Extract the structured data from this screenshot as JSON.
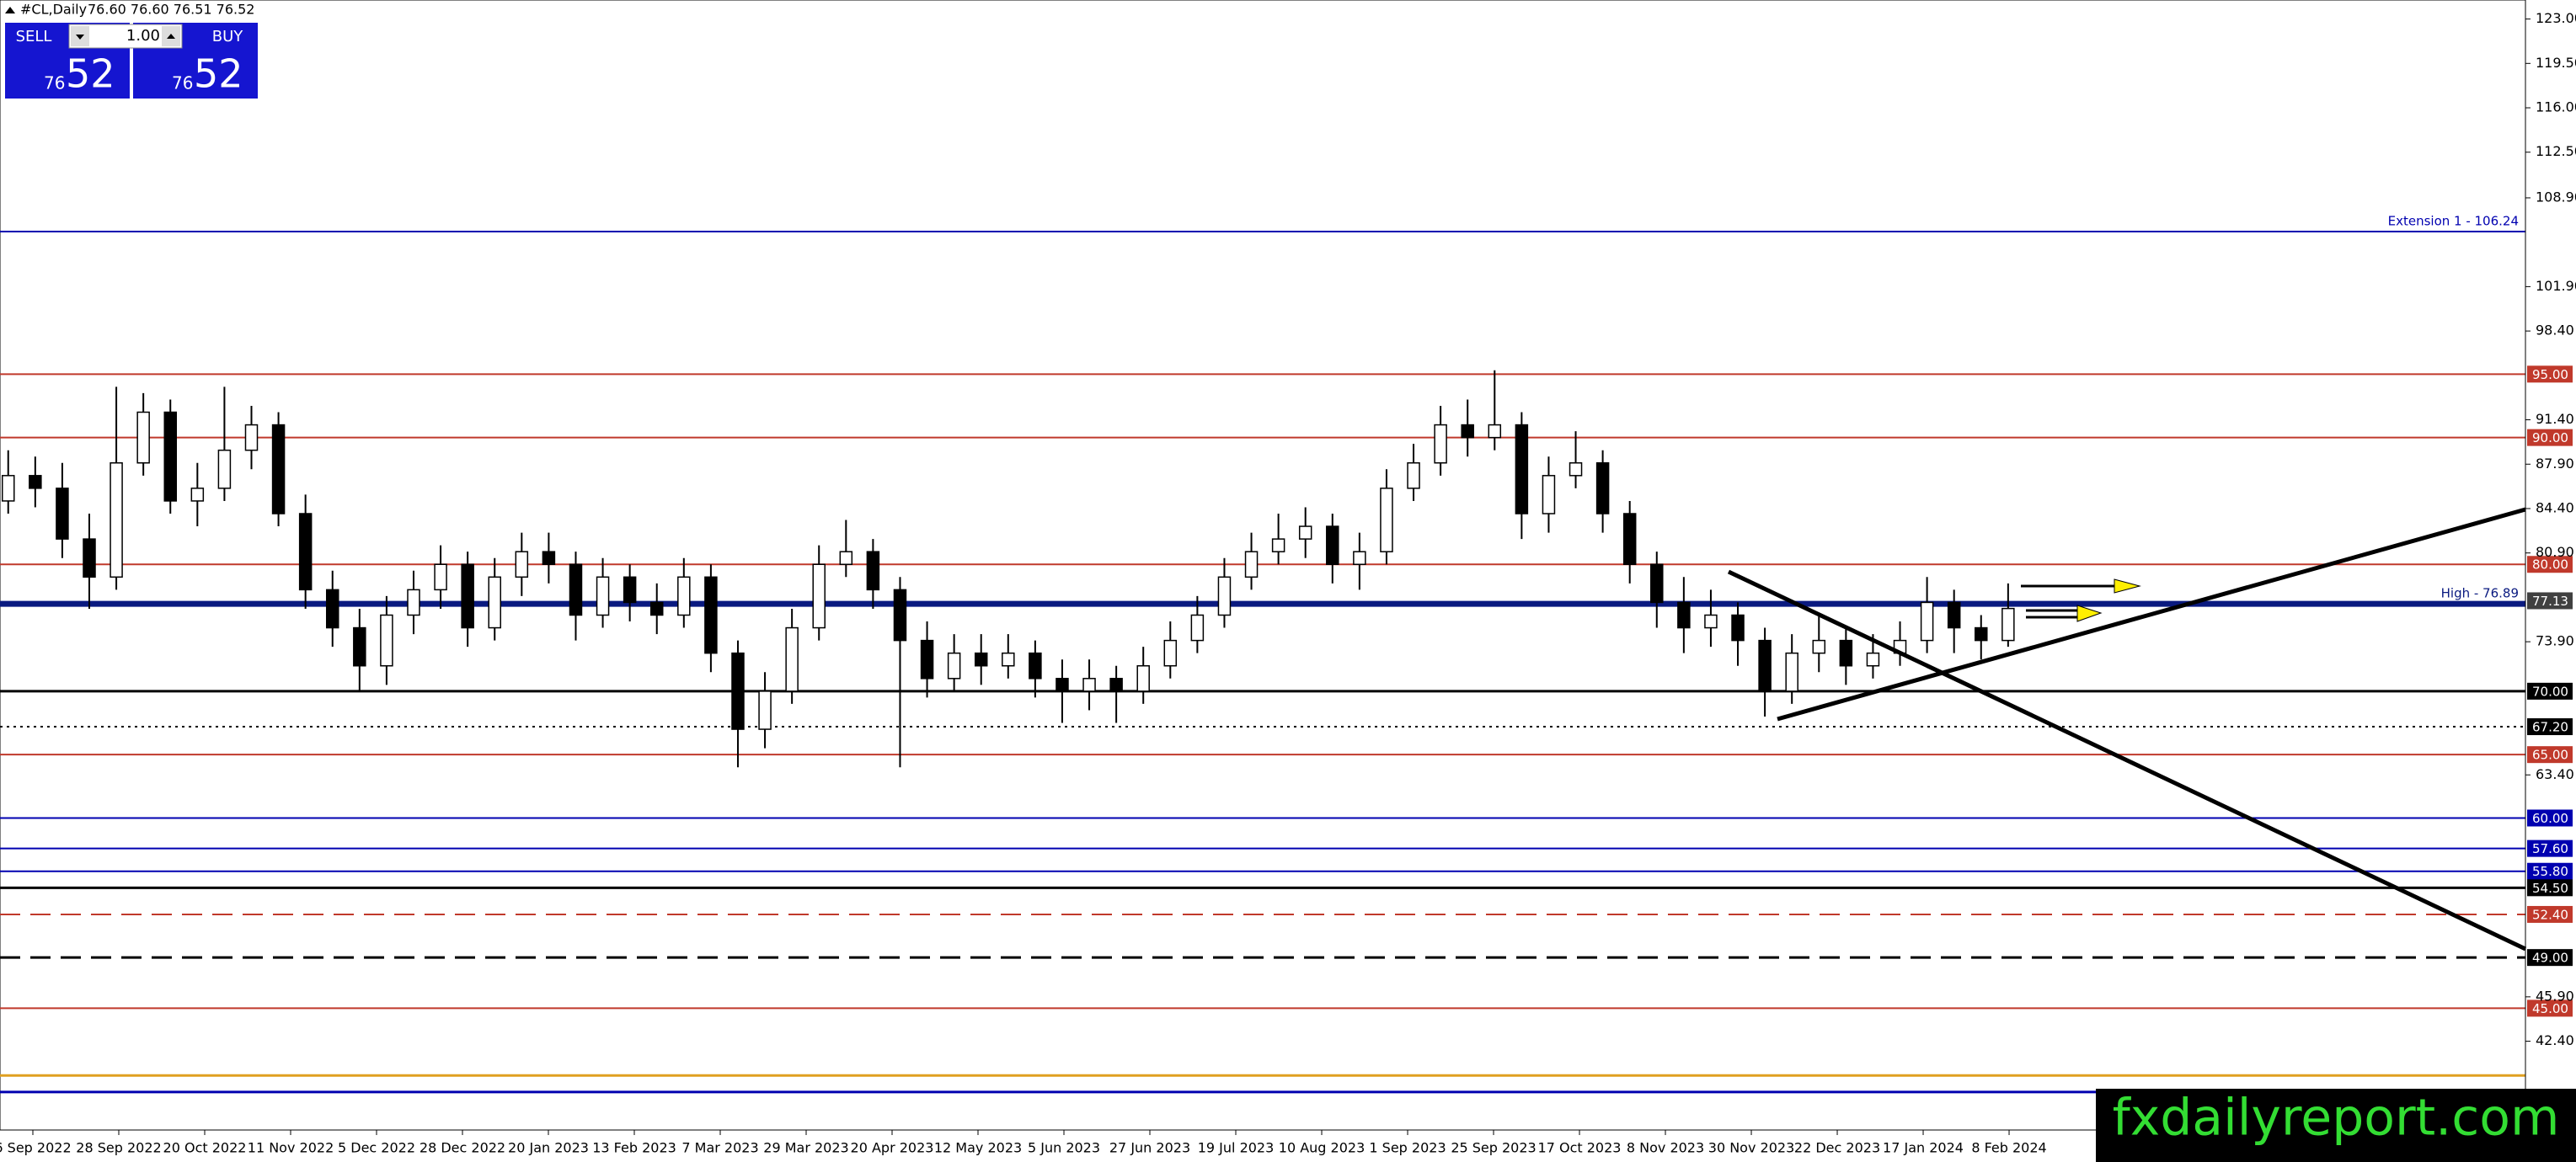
{
  "header": {
    "title": "#CL,Daily",
    "ohlc": "76.60 76.60 76.51 76.52"
  },
  "trade_panel": {
    "sell": "SELL",
    "buy": "BUY",
    "lot": "1.00",
    "sell_small": "76",
    "sell_big": "52",
    "buy_small": "76",
    "buy_big": "52"
  },
  "watermark": "fxdailyreport.com",
  "chart_data": {
    "type": "candlestick",
    "ylim": [
      35.4,
      124.5
    ],
    "yticks": [
      {
        "value": 123,
        "label": "123.00"
      },
      {
        "value": 119.5,
        "label": "119.50"
      },
      {
        "value": 116,
        "label": "116.00"
      },
      {
        "value": 112.5,
        "label": "112.50"
      },
      {
        "value": 108.9,
        "label": "108.90"
      },
      {
        "value": 101.9,
        "label": "101.90"
      },
      {
        "value": 98.4,
        "label": "98.40"
      },
      {
        "value": 91.4,
        "label": "91.40"
      },
      {
        "value": 87.9,
        "label": "87.90"
      },
      {
        "value": 84.4,
        "label": "84.40"
      },
      {
        "value": 80.9,
        "label": "80.90"
      },
      {
        "value": 73.9,
        "label": "73.90"
      },
      {
        "value": 63.4,
        "label": "63.40"
      },
      {
        "value": 45.9,
        "label": "45.90"
      },
      {
        "value": 42.4,
        "label": "42.40"
      }
    ],
    "date_labels": [
      "6 Sep 2022",
      "28 Sep 2022",
      "20 Oct 2022",
      "11 Nov 2022",
      "5 Dec 2022",
      "28 Dec 2022",
      "20 Jan 2023",
      "13 Feb 2023",
      "7 Mar 2023",
      "29 Mar 2023",
      "20 Apr 2023",
      "12 May 2023",
      "5 Jun 2023",
      "27 Jun 2023",
      "19 Jul 2023",
      "10 Aug 2023",
      "1 Sep 2023",
      "25 Sep 2023",
      "17 Oct 2023",
      "8 Nov 2023",
      "30 Nov 2023",
      "22 Dec 2023",
      "17 Jan 2024",
      "8 Feb 2024"
    ],
    "candles": [
      [
        85,
        89,
        84,
        87
      ],
      [
        87,
        88.5,
        84.5,
        86
      ],
      [
        86,
        88,
        80.5,
        82
      ],
      [
        82,
        84,
        76.5,
        79
      ],
      [
        79,
        94,
        78,
        88
      ],
      [
        88,
        93.5,
        87,
        92
      ],
      [
        92,
        93,
        84,
        85
      ],
      [
        85,
        88,
        83,
        86
      ],
      [
        86,
        94,
        85,
        89
      ],
      [
        89,
        92.5,
        87.5,
        91
      ],
      [
        91,
        92,
        83,
        84
      ],
      [
        84,
        85.5,
        76.5,
        78
      ],
      [
        78,
        79.5,
        73.5,
        75
      ],
      [
        75,
        76.5,
        70,
        72
      ],
      [
        72,
        77.5,
        70.5,
        76
      ],
      [
        76,
        79.5,
        74.5,
        78
      ],
      [
        78,
        81.5,
        76.5,
        80
      ],
      [
        80,
        81,
        73.5,
        75
      ],
      [
        75,
        80.5,
        74,
        79
      ],
      [
        79,
        82.5,
        77.5,
        81
      ],
      [
        81,
        82.5,
        78.5,
        80
      ],
      [
        80,
        81,
        74,
        76
      ],
      [
        76,
        80.5,
        75,
        79
      ],
      [
        79,
        80,
        75.5,
        77
      ],
      [
        77,
        78.5,
        74.5,
        76
      ],
      [
        76,
        80.5,
        75,
        79
      ],
      [
        79,
        80,
        71.5,
        73
      ],
      [
        73,
        74,
        64,
        67
      ],
      [
        67,
        71.5,
        65.5,
        70
      ],
      [
        70,
        76.5,
        69,
        75
      ],
      [
        75,
        81.5,
        74,
        80
      ],
      [
        80,
        83.5,
        79,
        81
      ],
      [
        81,
        82,
        76.5,
        78
      ],
      [
        78,
        79,
        64,
        74
      ],
      [
        74,
        75.5,
        69.5,
        71
      ],
      [
        71,
        74.5,
        70,
        73
      ],
      [
        73,
        74.5,
        70.5,
        72
      ],
      [
        72,
        74.5,
        71,
        73
      ],
      [
        73,
        74,
        69.5,
        71
      ],
      [
        71,
        72.5,
        67.5,
        70
      ],
      [
        70,
        72.5,
        68.5,
        71
      ],
      [
        71,
        72,
        67.5,
        70
      ],
      [
        70,
        73.5,
        69,
        72
      ],
      [
        72,
        75.5,
        71,
        74
      ],
      [
        74,
        77.5,
        73,
        76
      ],
      [
        76,
        80.5,
        75,
        79
      ],
      [
        79,
        82.5,
        78,
        81
      ],
      [
        81,
        84,
        80,
        82
      ],
      [
        82,
        84.5,
        80.5,
        83
      ],
      [
        83,
        84,
        78.5,
        80
      ],
      [
        80,
        82.5,
        78,
        81
      ],
      [
        81,
        87.5,
        80,
        86
      ],
      [
        86,
        89.5,
        85,
        88
      ],
      [
        88,
        92.5,
        87,
        91
      ],
      [
        91,
        93,
        88.5,
        90
      ],
      [
        90,
        95.3,
        89,
        91
      ],
      [
        91,
        92,
        82,
        84
      ],
      [
        84,
        88.5,
        82.5,
        87
      ],
      [
        87,
        90.5,
        86,
        88
      ],
      [
        88,
        89,
        82.5,
        84
      ],
      [
        84,
        85,
        78.5,
        80
      ],
      [
        80,
        81,
        75,
        77
      ],
      [
        77,
        79,
        73,
        75
      ],
      [
        75,
        78,
        73.5,
        76
      ],
      [
        76,
        77,
        72,
        74
      ],
      [
        74,
        75,
        68,
        70
      ],
      [
        70,
        74.5,
        69,
        73
      ],
      [
        73,
        76,
        71.5,
        74
      ],
      [
        74,
        75,
        70.5,
        72
      ],
      [
        72,
        74.5,
        71,
        73
      ],
      [
        73,
        75.5,
        72,
        74
      ],
      [
        74,
        79,
        73,
        77
      ],
      [
        77,
        78,
        73,
        75
      ],
      [
        75,
        76,
        72.5,
        74
      ],
      [
        74,
        78.5,
        73.5,
        76.52
      ]
    ],
    "levels": [
      {
        "value": 106.24,
        "color": "#0000b0",
        "style": "solid",
        "text": "Extension 1 - 106.24"
      },
      {
        "value": 95,
        "color": "#c0392b",
        "style": "solid",
        "tag": "95.00"
      },
      {
        "value": 90,
        "color": "#c0392b",
        "style": "solid",
        "tag": "90.00"
      },
      {
        "value": 80,
        "color": "#c0392b",
        "style": "solid",
        "tag": "80.00"
      },
      {
        "value": 77.13,
        "color": "#404040",
        "style": "none",
        "tag": "77.13"
      },
      {
        "value": 76.89,
        "color": "#0a1a80",
        "style": "thick",
        "text": "High - 76.89"
      },
      {
        "value": 70,
        "color": "#000000",
        "style": "bold",
        "tag": "70.00"
      },
      {
        "value": 67.2,
        "color": "#000000",
        "style": "dotted",
        "tag": "67.20"
      },
      {
        "value": 65,
        "color": "#c0392b",
        "style": "solid",
        "tag": "65.00"
      },
      {
        "value": 60,
        "color": "#0000b0",
        "style": "solid",
        "tag": "60.00"
      },
      {
        "value": 57.6,
        "color": "#0000b0",
        "style": "solid",
        "tag": "57.60"
      },
      {
        "value": 55.8,
        "color": "#0000b0",
        "style": "solid",
        "tag": "55.80"
      },
      {
        "value": 54.5,
        "color": "#000000",
        "style": "bold",
        "tag": "54.50"
      },
      {
        "value": 52.4,
        "color": "#c0392b",
        "style": "dashed",
        "tag": "52.40"
      },
      {
        "value": 49,
        "color": "#000000",
        "style": "dashed-bold",
        "tag": "49.00"
      },
      {
        "value": 45,
        "color": "#c0392b",
        "style": "solid",
        "tag": "45.00"
      },
      {
        "value": 39.7,
        "color": "#e0a020",
        "style": "bold"
      },
      {
        "value": 38.4,
        "color": "#0000b0",
        "style": "bold"
      }
    ]
  }
}
